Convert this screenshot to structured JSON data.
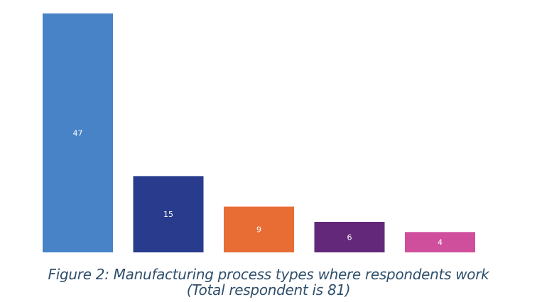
{
  "chart_data": {
    "type": "bar",
    "categories": [
      "",
      "",
      "",
      "",
      ""
    ],
    "values": [
      47,
      15,
      9,
      6,
      4
    ],
    "colors": [
      "#4783c6",
      "#283b8d",
      "#e86d35",
      "#63287a",
      "#cf4f9c"
    ],
    "ylim": [
      0,
      47
    ],
    "grid": false,
    "legend": "none",
    "title": "",
    "xlabel": "",
    "ylabel": ""
  },
  "caption": {
    "line1": "Figure 2: Manufacturing process types where respondents work",
    "line2": "(Total respondent is 81)"
  }
}
